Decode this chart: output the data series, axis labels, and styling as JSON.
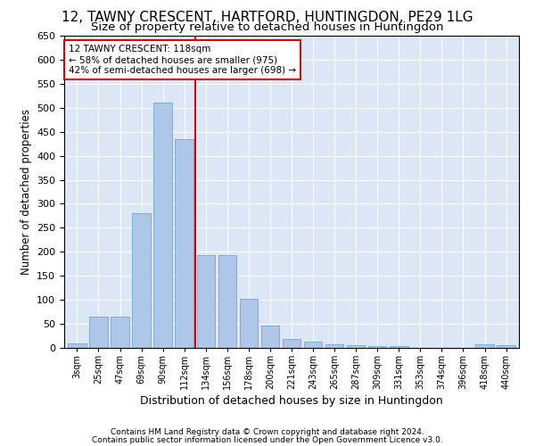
{
  "title": "12, TAWNY CRESCENT, HARTFORD, HUNTINGDON, PE29 1LG",
  "subtitle": "Size of property relative to detached houses in Huntingdon",
  "xlabel": "Distribution of detached houses by size in Huntingdon",
  "ylabel": "Number of detached properties",
  "footer1": "Contains HM Land Registry data © Crown copyright and database right 2024.",
  "footer2": "Contains public sector information licensed under the Open Government Licence v3.0.",
  "categories": [
    "3sqm",
    "25sqm",
    "47sqm",
    "69sqm",
    "90sqm",
    "112sqm",
    "134sqm",
    "156sqm",
    "178sqm",
    "200sqm",
    "221sqm",
    "243sqm",
    "265sqm",
    "287sqm",
    "309sqm",
    "331sqm",
    "353sqm",
    "374sqm",
    "396sqm",
    "418sqm",
    "440sqm"
  ],
  "values": [
    10,
    65,
    65,
    280,
    510,
    435,
    193,
    193,
    103,
    46,
    19,
    13,
    8,
    5,
    4,
    4,
    0,
    0,
    0,
    7,
    5
  ],
  "bar_color": "#aec6e8",
  "bar_edge_color": "#6aabd2",
  "vline_x": 5.5,
  "vline_color": "#cc0000",
  "annotation_text": "12 TAWNY CRESCENT: 118sqm\n← 58% of detached houses are smaller (975)\n42% of semi-detached houses are larger (698) →",
  "annotation_box_color": "#ffffff",
  "annotation_box_edge": "#cc0000",
  "ylim": [
    0,
    650
  ],
  "yticks": [
    0,
    50,
    100,
    150,
    200,
    250,
    300,
    350,
    400,
    450,
    500,
    550,
    600,
    650
  ],
  "fig_bg_color": "#ffffff",
  "plot_bg_color": "#dce6f5",
  "title_fontsize": 11,
  "subtitle_fontsize": 9.5
}
